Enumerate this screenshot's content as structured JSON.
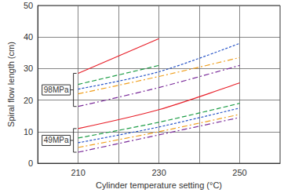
{
  "chart_data": {
    "type": "line",
    "x_label": "Cylinder temperature setting (°C)",
    "y_label": "Spiral flow length (cm)",
    "xlim": [
      200,
      260
    ],
    "xticks": [
      210,
      230,
      250
    ],
    "ylim": [
      0,
      50
    ],
    "yticks": [
      0,
      10,
      20,
      30,
      40,
      50
    ],
    "grid": true,
    "annotations": [
      "98MPa",
      "49MPa"
    ],
    "series": [
      {
        "group": "98MPa",
        "color": "#e8202a",
        "line_style": "solid",
        "x": [
          210,
          230
        ],
        "values": [
          28.5,
          39.5
        ]
      },
      {
        "group": "98MPa",
        "color": "#1f9e48",
        "line_style": "dashed",
        "x": [
          210,
          230
        ],
        "values": [
          25,
          31
        ]
      },
      {
        "group": "98MPa",
        "color": "#2855c8",
        "line_style": "dotted",
        "x": [
          210,
          230,
          250
        ],
        "values": [
          23.5,
          29,
          38
        ]
      },
      {
        "group": "98MPa",
        "color": "#f0a020",
        "line_style": "dashdot",
        "x": [
          210,
          230,
          250
        ],
        "values": [
          22,
          27.5,
          33.5
        ]
      },
      {
        "group": "98MPa",
        "color": "#7b2c9a",
        "line_style": "dashdot",
        "x": [
          210,
          230,
          250
        ],
        "values": [
          18,
          24,
          31
        ]
      },
      {
        "group": "49MPa",
        "color": "#e8202a",
        "line_style": "solid",
        "x": [
          210,
          230,
          250
        ],
        "values": [
          11,
          17,
          25.5
        ]
      },
      {
        "group": "49MPa",
        "color": "#1f9e48",
        "line_style": "dashed",
        "x": [
          210,
          230,
          250
        ],
        "values": [
          8,
          13,
          19
        ]
      },
      {
        "group": "49MPa",
        "color": "#2855c8",
        "line_style": "dotted",
        "x": [
          210,
          230,
          250
        ],
        "values": [
          6.5,
          11.5,
          17.5
        ]
      },
      {
        "group": "49MPa",
        "color": "#f0a020",
        "line_style": "dashdot",
        "x": [
          210,
          230,
          250
        ],
        "values": [
          5,
          10,
          15.5
        ]
      },
      {
        "group": "49MPa",
        "color": "#7b2c9a",
        "line_style": "dashdot",
        "x": [
          210,
          230,
          250
        ],
        "values": [
          3.5,
          9,
          14.5
        ]
      }
    ]
  }
}
